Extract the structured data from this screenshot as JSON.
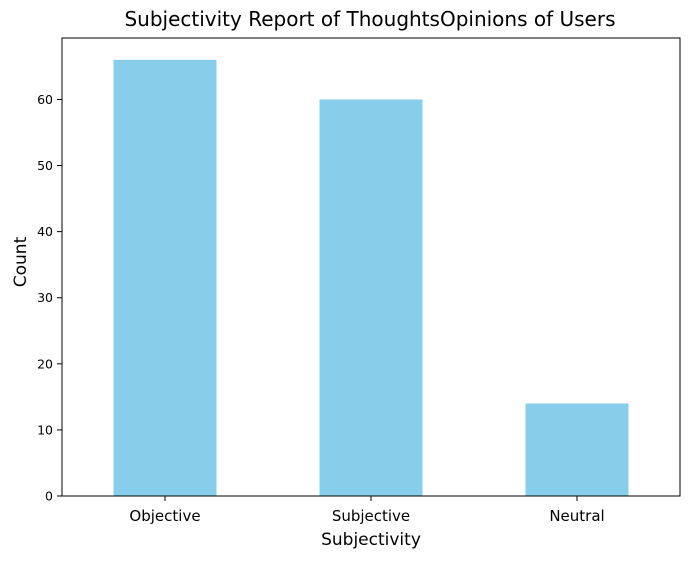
{
  "chart_data": {
    "type": "bar",
    "title": "Subjectivity Report of ThoughtsOpinions of Users",
    "xlabel": "Subjectivity",
    "ylabel": "Count",
    "categories": [
      "Objective",
      "Subjective",
      "Neutral"
    ],
    "values": [
      66,
      60,
      14
    ],
    "ylim": [
      0,
      69.3
    ],
    "yticks": [
      0,
      10,
      20,
      30,
      40,
      50,
      60
    ],
    "grid": false,
    "bar_color": "#87CEEB"
  }
}
